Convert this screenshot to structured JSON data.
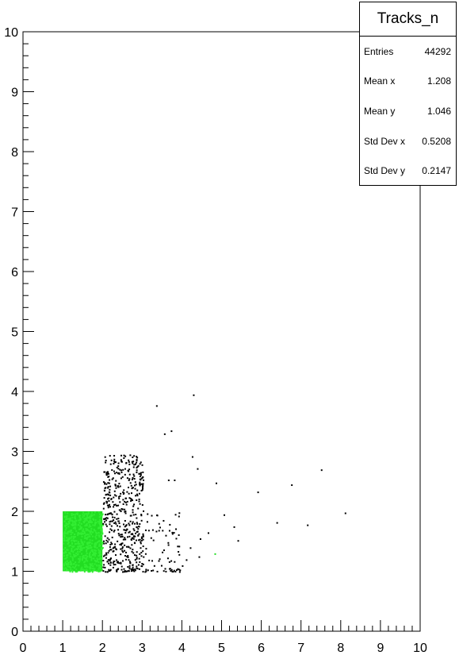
{
  "stats": {
    "title": "Tracks_n",
    "rows": [
      {
        "label": "Entries",
        "value": "44292"
      },
      {
        "label": "Mean x",
        "value": "1.208"
      },
      {
        "label": "Mean y",
        "value": "1.046"
      },
      {
        "label": "Std Dev x",
        "value": "0.5208"
      },
      {
        "label": "Std Dev y",
        "value": "0.2147"
      }
    ]
  },
  "chart_data": {
    "type": "scatter",
    "title": "Tracks_n",
    "xlabel": "",
    "ylabel": "",
    "xlim": [
      0,
      10
    ],
    "ylim": [
      0,
      10
    ],
    "xticks": [
      0,
      1,
      2,
      3,
      4,
      5,
      6,
      7,
      8,
      9,
      10
    ],
    "yticks": [
      0,
      1,
      2,
      3,
      4,
      5,
      6,
      7,
      8,
      9,
      10
    ],
    "grid": false,
    "green_block": {
      "x_range": [
        1,
        2
      ],
      "y_range": [
        1,
        2
      ],
      "color": "#22dd22"
    },
    "point_color": "#000000",
    "highlight_color": "#22dd22",
    "outliers": [
      [
        3.35,
        3.77
      ],
      [
        4.28,
        3.95
      ],
      [
        3.55,
        3.3
      ],
      [
        3.72,
        3.35
      ],
      [
        4.25,
        2.92
      ],
      [
        4.38,
        2.72
      ],
      [
        3.65,
        2.53
      ],
      [
        3.8,
        2.53
      ],
      [
        4.85,
        2.48
      ],
      [
        5.9,
        2.33
      ],
      [
        6.75,
        2.45
      ],
      [
        7.5,
        2.7
      ],
      [
        8.1,
        1.98
      ],
      [
        7.15,
        1.78
      ],
      [
        6.38,
        1.82
      ],
      [
        5.05,
        1.95
      ],
      [
        5.3,
        1.75
      ],
      [
        5.4,
        1.52
      ],
      [
        4.65,
        1.65
      ],
      [
        4.45,
        1.55
      ],
      [
        4.42,
        1.25
      ],
      [
        4.2,
        1.4
      ],
      [
        4.1,
        1.2
      ],
      [
        4.0,
        1.1
      ],
      [
        3.88,
        1.05
      ],
      [
        3.7,
        1.02
      ]
    ],
    "highlighted_points": [
      [
        4.82,
        1.3
      ]
    ]
  }
}
